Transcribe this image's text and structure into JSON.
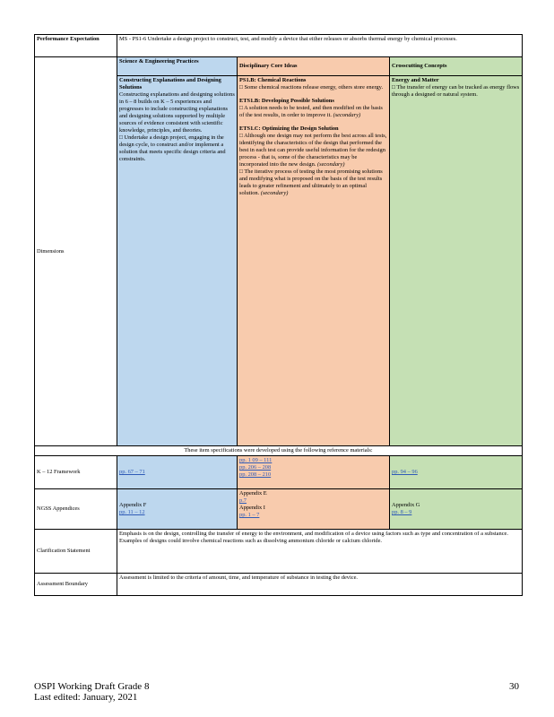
{
  "performance_expectation": {
    "label": "Performance Expectation",
    "text": "MS - PS1-6 Undertake a design project to construct, test, and modify a device that either releases or absorbs thermal energy by chemical processes."
  },
  "dimensions": {
    "label": "Dimensions",
    "headers": {
      "sep": "Science & Engineering Practices",
      "dci": "Disciplinary Core Ideas",
      "ccc": "Crosscutting Concepts"
    },
    "sep": {
      "title": "Constructing Explanations and Designing Solutions",
      "intro": "Constructing explanations and designing solutions in 6 – 8 builds on K – 5 experiences and progresses to include constructing explanations and designing solutions supported by multiple sources of evidence consistent with scientific knowledge, principles, and theories.",
      "bullet": "Undertake a design project, engaging in the design cycle, to construct and/or implement a solution that meets specific design criteria and constraints."
    },
    "dci": {
      "ps1b_title": "PS1.B: Chemical Reactions",
      "ps1b_bullet": "Some chemical reactions release energy, others store energy.",
      "ets1b_title": "ETS1.B: Developing Possible Solutions",
      "ets1b_bullet": "A solution needs to be tested, and then modified on the basis of the test results, in order to improve it.",
      "ets1b_tag": "(secondary)",
      "ets1c_title": "ETS1.C: Optimizing the Design Solution",
      "ets1c_bullet1": "Although one design may not perform the best across all tests, identifying the characteristics of the design that performed the best in each test can provide useful information for the redesign process - that is, some of the characteristics may be incorporated into the new design.",
      "ets1c_bullet1_tag": "(secondary)",
      "ets1c_bullet2": "The iterative process of testing the most promising solutions and modifying what is proposed on the basis of the test results leads to greater refinement and ultimately to an optimal solution.",
      "ets1c_bullet2_tag": "(secondary)"
    },
    "ccc": {
      "title": "Energy and Matter",
      "bullet": "The transfer of energy can be tracked as energy flows through a designed or natural system."
    },
    "bullet_char": "□"
  },
  "reference_note": "These item specifications were developed using the following reference materials:",
  "framework": {
    "label": "K – 12 Framework",
    "sep": "pp. 67 – 71",
    "dci": [
      "pp. 1 09 – 111",
      "pp. 206 – 208",
      "pp. 208 – 210"
    ],
    "ccc": "pp. 94 – 96"
  },
  "ngss": {
    "label": "NGSS Appendices",
    "sep_appendix": "Appendix F",
    "sep_pages": "pp. 11 – 12",
    "dci_appendix1": "Appendix E",
    "dci_pages1": "p.7",
    "dci_appendix2": "Appendix I",
    "dci_pages2": "pp. 1 – 7",
    "ccc_appendix": "Appendix G",
    "ccc_pages": "pp. 8 – 9"
  },
  "clarification": {
    "label": "Clarification Statement",
    "text": "Emphasis is on the design, controlling the transfer of energy to the environment, and modification of a device using factors such as type and concentration of a substance. Examples of designs could involve chemical reactions such as dissolving ammonium chloride or calcium chloride."
  },
  "assessment": {
    "label": "Assessment Boundary",
    "text": "Assessment is limited to the criteria of amount, time, and temperature of substance in testing the device."
  },
  "footer": {
    "line1": "OSPI Working Draft Grade 8",
    "line2": "Last edited: January, 2021",
    "page": "30"
  }
}
